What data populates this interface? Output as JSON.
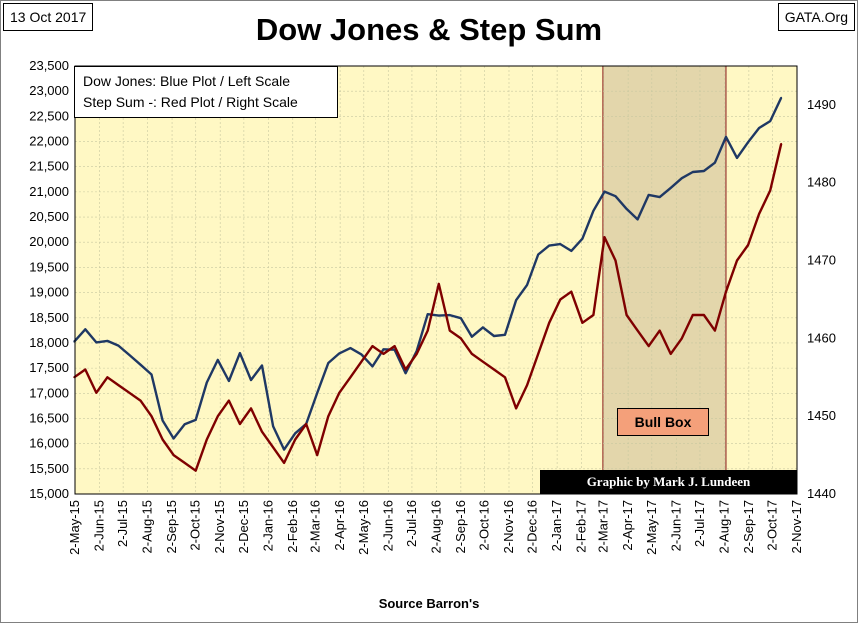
{
  "header": {
    "date": "13 Oct 2017",
    "source": "GATA.Org",
    "title": "Dow Jones & Step Sum"
  },
  "legend": {
    "line1": "Dow Jones: Blue Plot / Left Scale",
    "line2": "Step Sum -: Red Plot / Right Scale"
  },
  "annotations": {
    "bull_box": "Bull Box",
    "credit": "Graphic by Mark J. Lundeen",
    "bull_box_range": [
      "2017-03-01",
      "2017-08-04"
    ]
  },
  "colors": {
    "plot_background": "#fff8c4",
    "bull_box_fill": "#e3d6ab",
    "dow_line": "#1f3864",
    "step_sum_line": "#7f0000",
    "bull_label_fill": "#f4a07a"
  },
  "chart_data": {
    "type": "line",
    "title": "Dow Jones & Step Sum",
    "xlabel": "Source Barron's",
    "x_ticks": [
      "2-May-15",
      "2-Jun-15",
      "2-Jul-15",
      "2-Aug-15",
      "2-Sep-15",
      "2-Oct-15",
      "2-Nov-15",
      "2-Dec-15",
      "2-Jan-16",
      "2-Feb-16",
      "2-Mar-16",
      "2-Apr-16",
      "2-May-16",
      "2-Jun-16",
      "2-Jul-16",
      "2-Aug-16",
      "2-Sep-16",
      "2-Oct-16",
      "2-Nov-16",
      "2-Dec-16",
      "2-Jan-17",
      "2-Feb-17",
      "2-Mar-17",
      "2-Apr-17",
      "2-May-17",
      "2-Jun-17",
      "2-Jul-17",
      "2-Aug-17",
      "2-Sep-17",
      "2-Oct-17",
      "2-Nov-17"
    ],
    "y_left": {
      "ylim": [
        15000,
        23500
      ],
      "ticks": [
        "15,000",
        "15,500",
        "16,000",
        "16,500",
        "17,000",
        "17,500",
        "18,000",
        "18,500",
        "19,000",
        "19,500",
        "20,000",
        "20,500",
        "21,000",
        "21,500",
        "22,000",
        "22,500",
        "23,000",
        "23,500"
      ]
    },
    "y_right": {
      "ylim": [
        1440,
        1495
      ],
      "ticks": [
        "1440",
        "1450",
        "1460",
        "1470",
        "1480",
        "1490"
      ]
    },
    "grid": true,
    "legend_position": "top-left",
    "series": [
      {
        "name": "Dow Jones",
        "axis": "left",
        "x": [
          "2015-05-01",
          "2015-05-15",
          "2015-05-29",
          "2015-06-12",
          "2015-06-26",
          "2015-07-10",
          "2015-07-24",
          "2015-08-07",
          "2015-08-21",
          "2015-09-04",
          "2015-09-18",
          "2015-10-02",
          "2015-10-16",
          "2015-10-30",
          "2015-11-13",
          "2015-11-27",
          "2015-12-11",
          "2015-12-25",
          "2016-01-08",
          "2016-01-22",
          "2016-02-05",
          "2016-02-19",
          "2016-03-04",
          "2016-03-18",
          "2016-04-01",
          "2016-04-15",
          "2016-04-29",
          "2016-05-13",
          "2016-05-27",
          "2016-06-10",
          "2016-06-24",
          "2016-07-08",
          "2016-07-22",
          "2016-08-05",
          "2016-08-19",
          "2016-09-02",
          "2016-09-16",
          "2016-09-30",
          "2016-10-14",
          "2016-10-28",
          "2016-11-11",
          "2016-11-25",
          "2016-12-09",
          "2016-12-23",
          "2017-01-06",
          "2017-01-20",
          "2017-02-03",
          "2017-02-17",
          "2017-03-03",
          "2017-03-17",
          "2017-03-31",
          "2017-04-14",
          "2017-04-28",
          "2017-05-12",
          "2017-05-26",
          "2017-06-09",
          "2017-06-23",
          "2017-07-07",
          "2017-07-21",
          "2017-08-04",
          "2017-08-18",
          "2017-09-01",
          "2017-09-15",
          "2017-09-29",
          "2017-10-13"
        ],
        "values": [
          18024,
          18270,
          18011,
          18040,
          17947,
          17760,
          17568,
          17373,
          16460,
          16102,
          16384,
          16472,
          17215,
          17663,
          17245,
          17798,
          17265,
          17552,
          16346,
          15882,
          16205,
          16392,
          17006,
          17602,
          17792,
          17897,
          17773,
          17535,
          17873,
          17865,
          17400,
          17840,
          18570,
          18543,
          18552,
          18491,
          18123,
          18308,
          18138,
          18161,
          18848,
          19152,
          19757,
          19933,
          19963,
          19827,
          20071,
          20624,
          21005,
          20914,
          20663,
          20453,
          20940,
          20896,
          21080,
          21271,
          21395,
          21414,
          21580,
          22092,
          21674,
          21987,
          22268,
          22405,
          22871
        ]
      },
      {
        "name": "Step Sum",
        "axis": "right",
        "x": [
          "2015-05-01",
          "2015-05-15",
          "2015-05-29",
          "2015-06-12",
          "2015-06-26",
          "2015-07-10",
          "2015-07-24",
          "2015-08-07",
          "2015-08-21",
          "2015-09-04",
          "2015-09-18",
          "2015-10-02",
          "2015-10-16",
          "2015-10-30",
          "2015-11-13",
          "2015-11-27",
          "2015-12-11",
          "2015-12-25",
          "2016-01-08",
          "2016-01-22",
          "2016-02-05",
          "2016-02-19",
          "2016-03-04",
          "2016-03-18",
          "2016-04-01",
          "2016-04-15",
          "2016-04-29",
          "2016-05-13",
          "2016-05-27",
          "2016-06-10",
          "2016-06-24",
          "2016-07-08",
          "2016-07-22",
          "2016-08-05",
          "2016-08-19",
          "2016-09-02",
          "2016-09-16",
          "2016-09-30",
          "2016-10-14",
          "2016-10-28",
          "2016-11-11",
          "2016-11-25",
          "2016-12-09",
          "2016-12-23",
          "2017-01-06",
          "2017-01-20",
          "2017-02-03",
          "2017-02-17",
          "2017-03-03",
          "2017-03-17",
          "2017-03-31",
          "2017-04-14",
          "2017-04-28",
          "2017-05-12",
          "2017-05-26",
          "2017-06-09",
          "2017-06-23",
          "2017-07-07",
          "2017-07-21",
          "2017-08-04",
          "2017-08-18",
          "2017-09-01",
          "2017-09-15",
          "2017-09-29",
          "2017-10-13"
        ],
        "values": [
          1455,
          1456,
          1453,
          1455,
          1454,
          1453,
          1452,
          1450,
          1447,
          1445,
          1444,
          1443,
          1447,
          1450,
          1452,
          1449,
          1451,
          1448,
          1446,
          1444,
          1447,
          1449,
          1445,
          1450,
          1453,
          1455,
          1457,
          1459,
          1458,
          1459,
          1456,
          1458,
          1461,
          1467,
          1461,
          1460,
          1458,
          1457,
          1456,
          1455,
          1451,
          1454,
          1458,
          1462,
          1465,
          1466,
          1462,
          1463,
          1473,
          1470,
          1463,
          1461,
          1459,
          1461,
          1458,
          1460,
          1463,
          1463,
          1461,
          1466,
          1470,
          1472,
          1476,
          1479,
          1485
        ]
      }
    ]
  }
}
